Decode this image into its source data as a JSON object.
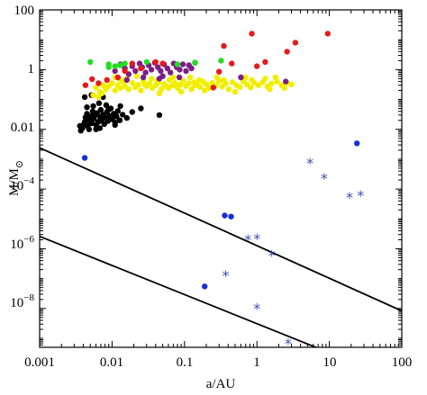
{
  "chart_data": {
    "type": "scatter",
    "title": "",
    "xlabel": "a/AU",
    "ylabel": "M/M",
    "ylabel_subscript": "⊙",
    "x_scale": "log",
    "y_scale": "log",
    "xlim": [
      0.001,
      100
    ],
    "ylim": [
      5e-10,
      100
    ],
    "grid": false,
    "x_tick_labels": [
      "0.001",
      "0.01",
      "0.1",
      "1",
      "10",
      "100"
    ],
    "y_tick_labels": [
      {
        "base": "100",
        "exp": ""
      },
      {
        "base": "1",
        "exp": ""
      },
      {
        "base": "0.01",
        "exp": ""
      },
      {
        "base": "10",
        "exp": "−4"
      },
      {
        "base": "10",
        "exp": "−6"
      },
      {
        "base": "10",
        "exp": "−8"
      }
    ],
    "colors": {
      "black": "#000000",
      "yellow": "#f2ee00",
      "purple": "#7a1f86",
      "green": "#22dd22",
      "red": "#e41a1c",
      "blue": "#1a2fd8",
      "star": "#3a4fb0",
      "line": "#000000"
    },
    "lines": [
      {
        "points": [
          [
            0.001,
            0.0024
          ],
          [
            100,
            8.3e-09
          ]
        ]
      },
      {
        "points": [
          [
            0.001,
            2.6e-06
          ],
          [
            11,
            3e-10
          ]
        ]
      }
    ],
    "series": [
      {
        "marker": "dot",
        "color_key": "black",
        "points": [
          [
            0.0037,
            0.009
          ],
          [
            0.0039,
            0.011
          ],
          [
            0.004,
            0.014
          ],
          [
            0.0042,
            0.018
          ],
          [
            0.0043,
            0.025
          ],
          [
            0.0045,
            0.033
          ],
          [
            0.0046,
            0.013
          ],
          [
            0.0048,
            0.02
          ],
          [
            0.005,
            0.027
          ],
          [
            0.0052,
            0.016
          ],
          [
            0.0054,
            0.04
          ],
          [
            0.0056,
            0.022
          ],
          [
            0.0058,
            0.03
          ],
          [
            0.006,
            0.014
          ],
          [
            0.0062,
            0.035
          ],
          [
            0.0065,
            0.018
          ],
          [
            0.0068,
            0.026
          ],
          [
            0.007,
            0.045
          ],
          [
            0.0072,
            0.02
          ],
          [
            0.0075,
            0.031
          ],
          [
            0.0078,
            0.015
          ],
          [
            0.0081,
            0.024
          ],
          [
            0.0085,
            0.038
          ],
          [
            0.0088,
            0.019
          ],
          [
            0.0092,
            0.028
          ],
          [
            0.0096,
            0.05
          ],
          [
            0.01,
            0.022
          ],
          [
            0.0105,
            0.033
          ],
          [
            0.011,
            0.017
          ],
          [
            0.0115,
            0.027
          ],
          [
            0.012,
            0.041
          ],
          [
            0.0128,
            0.02
          ],
          [
            0.014,
            0.031
          ],
          [
            0.016,
            0.024
          ],
          [
            0.019,
            0.038
          ],
          [
            0.0055,
            0.06
          ],
          [
            0.0066,
            0.075
          ],
          [
            0.0083,
            0.065
          ],
          [
            0.0042,
            0.12
          ],
          [
            0.0052,
            0.14
          ],
          [
            0.0075,
            0.12
          ],
          [
            0.013,
            0.06
          ],
          [
            0.0036,
            0.013
          ],
          [
            0.0048,
            0.01
          ],
          [
            0.006,
            0.01
          ],
          [
            0.025,
            0.05
          ],
          [
            0.045,
            0.03
          ],
          [
            0.011,
            0.014
          ],
          [
            0.0068,
            0.011
          ],
          [
            0.0089,
            0.045
          ],
          [
            0.0045,
            0.055
          ]
        ]
      },
      {
        "marker": "dot",
        "color_key": "yellow",
        "points": [
          [
            0.006,
            0.25
          ],
          [
            0.0068,
            0.18
          ],
          [
            0.0075,
            0.3
          ],
          [
            0.0082,
            0.22
          ],
          [
            0.009,
            0.28
          ],
          [
            0.01,
            0.35
          ],
          [
            0.011,
            0.2
          ],
          [
            0.012,
            0.3
          ],
          [
            0.013,
            0.24
          ],
          [
            0.014,
            0.4
          ],
          [
            0.015,
            0.28
          ],
          [
            0.017,
            0.22
          ],
          [
            0.019,
            0.36
          ],
          [
            0.021,
            0.26
          ],
          [
            0.023,
            0.31
          ],
          [
            0.025,
            0.2
          ],
          [
            0.027,
            0.42
          ],
          [
            0.03,
            0.28
          ],
          [
            0.033,
            0.35
          ],
          [
            0.036,
            0.24
          ],
          [
            0.04,
            0.3
          ],
          [
            0.044,
            0.38
          ],
          [
            0.048,
            0.22
          ],
          [
            0.052,
            0.33
          ],
          [
            0.057,
            0.27
          ],
          [
            0.062,
            0.45
          ],
          [
            0.068,
            0.3
          ],
          [
            0.074,
            0.36
          ],
          [
            0.081,
            0.24
          ],
          [
            0.088,
            0.32
          ],
          [
            0.096,
            0.42
          ],
          [
            0.105,
            0.28
          ],
          [
            0.115,
            0.35
          ],
          [
            0.125,
            0.22
          ],
          [
            0.137,
            0.38
          ],
          [
            0.15,
            0.3
          ],
          [
            0.165,
            0.26
          ],
          [
            0.18,
            0.4
          ],
          [
            0.2,
            0.32
          ],
          [
            0.22,
            0.24
          ],
          [
            0.24,
            0.36
          ],
          [
            0.27,
            0.3
          ],
          [
            0.3,
            0.42
          ],
          [
            0.33,
            0.27
          ],
          [
            0.37,
            0.34
          ],
          [
            0.41,
            0.22
          ],
          [
            0.46,
            0.38
          ],
          [
            0.52,
            0.3
          ],
          [
            0.58,
            0.26
          ],
          [
            0.65,
            0.4
          ],
          [
            0.73,
            0.32
          ],
          [
            0.82,
            0.25
          ],
          [
            0.92,
            0.36
          ],
          [
            1.05,
            0.3
          ],
          [
            1.2,
            0.38
          ],
          [
            1.4,
            0.27
          ],
          [
            1.6,
            0.34
          ],
          [
            1.9,
            0.4
          ],
          [
            2.2,
            0.3
          ],
          [
            2.6,
            0.36
          ],
          [
            3.0,
            0.32
          ],
          [
            0.0055,
            0.14
          ],
          [
            0.0065,
            0.12
          ],
          [
            0.0072,
            0.16
          ],
          [
            0.0085,
            0.45
          ],
          [
            0.011,
            0.55
          ],
          [
            0.016,
            0.5
          ],
          [
            0.022,
            0.6
          ],
          [
            0.035,
            0.5
          ],
          [
            0.045,
            0.16
          ],
          [
            0.07,
            0.55
          ],
          [
            0.09,
            0.18
          ],
          [
            0.12,
            0.55
          ],
          [
            0.19,
            0.2
          ],
          [
            0.28,
            0.55
          ],
          [
            0.5,
            0.18
          ],
          [
            0.7,
            0.55
          ],
          [
            1.3,
            0.5
          ],
          [
            1.8,
            0.55
          ],
          [
            0.06,
            0.24
          ],
          [
            0.16,
            0.45
          ],
          [
            0.35,
            0.45
          ],
          [
            0.85,
            0.45
          ],
          [
            1.5,
            0.22
          ],
          [
            2.4,
            0.24
          ],
          [
            0.013,
            0.45
          ],
          [
            0.028,
            0.32
          ],
          [
            0.042,
            0.42
          ],
          [
            0.078,
            0.28
          ],
          [
            0.14,
            0.3
          ]
        ]
      },
      {
        "marker": "dot",
        "color_key": "purple",
        "points": [
          [
            0.011,
            0.9
          ],
          [
            0.013,
            1.5
          ],
          [
            0.015,
            1.1
          ],
          [
            0.017,
            0.7
          ],
          [
            0.019,
            1.3
          ],
          [
            0.021,
            0.9
          ],
          [
            0.024,
            1.6
          ],
          [
            0.026,
            1.2
          ],
          [
            0.029,
            0.8
          ],
          [
            0.032,
            1.4
          ],
          [
            0.035,
            1.0
          ],
          [
            0.039,
            1.7
          ],
          [
            0.043,
            1.2
          ],
          [
            0.047,
            0.9
          ],
          [
            0.052,
            1.5
          ],
          [
            0.058,
            1.1
          ],
          [
            0.064,
            0.8
          ],
          [
            0.071,
            1.6
          ],
          [
            0.078,
            1.2
          ],
          [
            0.086,
            1.0
          ],
          [
            0.095,
            1.5
          ],
          [
            0.105,
            0.9
          ],
          [
            0.115,
            1.4
          ],
          [
            0.125,
            1.1
          ],
          [
            0.14,
            1.7
          ],
          [
            0.016,
            0.45
          ],
          [
            0.027,
            0.55
          ],
          [
            0.05,
            0.6
          ],
          [
            0.085,
            0.55
          ],
          [
            0.045,
            0.5
          ],
          [
            0.6,
            0.55
          ],
          [
            2.5,
            0.4
          ]
        ]
      },
      {
        "marker": "dot",
        "color_key": "green",
        "points": [
          [
            0.005,
            1.8
          ],
          [
            0.009,
            1.5
          ],
          [
            0.011,
            1.3
          ],
          [
            0.013,
            1.4
          ],
          [
            0.015,
            1.6
          ],
          [
            0.03,
            1.8
          ],
          [
            0.08,
            1.5
          ],
          [
            0.14,
            1.7
          ],
          [
            0.32,
            2.0
          ],
          [
            0.009,
            1.2
          ]
        ]
      },
      {
        "marker": "dot",
        "color_key": "red",
        "points": [
          [
            0.0043,
            0.3
          ],
          [
            0.0053,
            0.48
          ],
          [
            0.0065,
            0.35
          ],
          [
            0.0085,
            0.45
          ],
          [
            0.015,
            0.9
          ],
          [
            0.019,
            1.6
          ],
          [
            0.025,
            1.1
          ],
          [
            0.04,
            1.8
          ],
          [
            0.05,
            1.6
          ],
          [
            0.012,
            0.55
          ],
          [
            0.35,
            6.2
          ],
          [
            0.3,
            0.85
          ],
          [
            0.45,
            1.6
          ],
          [
            0.85,
            16.0
          ],
          [
            1.0,
            1.3
          ],
          [
            1.3,
            1.8
          ],
          [
            2.6,
            4.0
          ],
          [
            3.4,
            8.0
          ],
          [
            9.5,
            16.0
          ],
          [
            0.25,
            0.25
          ]
        ]
      },
      {
        "marker": "dot",
        "color_key": "blue",
        "points": [
          [
            0.0042,
            0.0011
          ],
          [
            0.36,
            1.3e-05
          ],
          [
            0.44,
            1.2e-05
          ],
          [
            0.19,
            5.5e-08
          ],
          [
            24,
            0.0034
          ]
        ]
      },
      {
        "marker": "star",
        "color_key": "star",
        "points": [
          [
            0.75,
            2.2e-06
          ],
          [
            1.0,
            2.4e-06
          ],
          [
            0.37,
            1.4e-07
          ],
          [
            1.6,
            6.5e-07
          ],
          [
            1.0,
            1.1e-08
          ],
          [
            2.7,
            7.2e-10
          ],
          [
            5.4,
            0.00081
          ],
          [
            8.5,
            0.00025
          ],
          [
            19,
            5.8e-05
          ],
          [
            27,
            6.6e-05
          ]
        ]
      }
    ]
  }
}
